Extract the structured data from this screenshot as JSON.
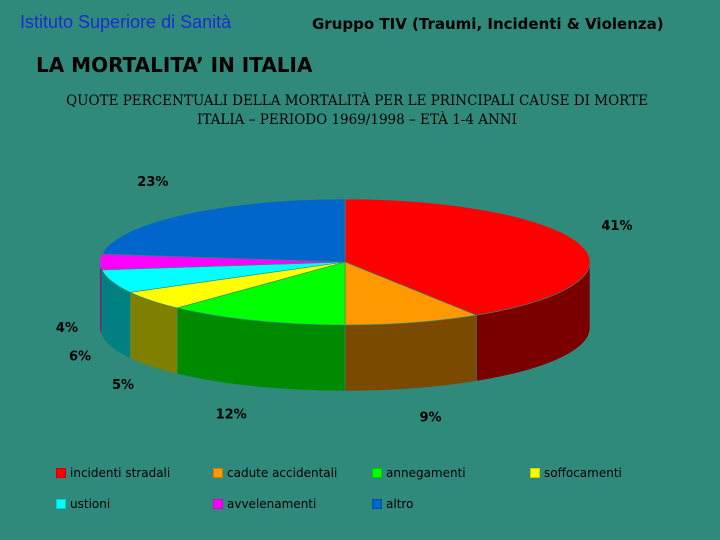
{
  "header": {
    "org": "Istituto Superiore di Sanità",
    "group": "Gruppo TIV (Traumi, Incidenti & Violenza)"
  },
  "slide": {
    "title": "LA MORTALITA’ IN ITALIA",
    "subtitle_line1": "QUOTE PERCENTUALI DELLA MORTALITÀ PER LE PRINCIPALI CAUSE DI MORTE",
    "subtitle_line2": "ITALIA – PERIODO 1969/1998 – ETÀ 1-4 ANNI"
  },
  "chart_data": {
    "type": "pie",
    "title": "QUOTE PERCENTUALI DELLA MORTALITÀ PER LE PRINCIPALI CAUSE DI MORTE ITALIA – PERIODO 1969/1998 – ETÀ 1-4 ANNI",
    "legend_position": "bottom",
    "slices": [
      {
        "name": "incidenti stradali",
        "value": 41,
        "label": "41%",
        "color": "#ff0000",
        "side_color": "#7a0000"
      },
      {
        "name": "cadute accidentali",
        "value": 9,
        "label": "9%",
        "color": "#ff9900",
        "side_color": "#7a4a00"
      },
      {
        "name": "annegamenti",
        "value": 12,
        "label": "12%",
        "color": "#00ff00",
        "side_color": "#008a00"
      },
      {
        "name": "soffocamenti",
        "value": 5,
        "label": "5%",
        "color": "#ffff00",
        "side_color": "#808000"
      },
      {
        "name": "ustioni",
        "value": 6,
        "label": "6%",
        "color": "#00ffff",
        "side_color": "#008080"
      },
      {
        "name": "avvelenamenti",
        "value": 4,
        "label": "4%",
        "color": "#ff00ff",
        "side_color": "#800080"
      },
      {
        "name": "altro",
        "value": 23,
        "label": "23%",
        "color": "#0066cc",
        "side_color": "#003366"
      }
    ]
  }
}
